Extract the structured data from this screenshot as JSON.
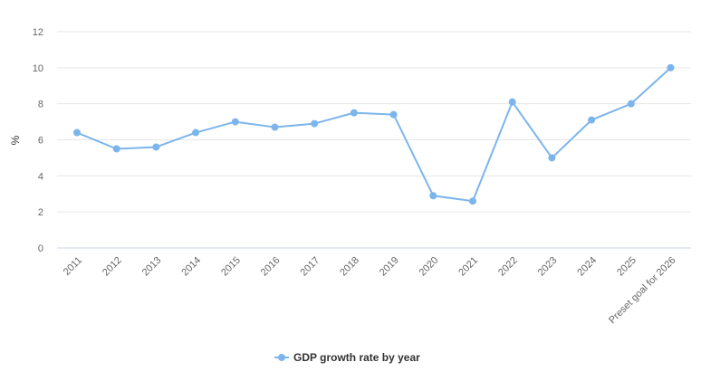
{
  "chart_data": {
    "type": "line",
    "title": "",
    "xlabel": "",
    "ylabel": "%",
    "ylim": [
      0,
      12
    ],
    "yticks": [
      0,
      2,
      4,
      6,
      8,
      10,
      12
    ],
    "grid": true,
    "legend_position": "bottom-center",
    "categories": [
      "2011",
      "2012",
      "2013",
      "2014",
      "2015",
      "2016",
      "2017",
      "2018",
      "2019",
      "2020",
      "2021",
      "2022",
      "2023",
      "2024",
      "2025",
      "Preset goal for 2026"
    ],
    "series": [
      {
        "name": "GDP growth rate by year",
        "color": "#7cb5ec",
        "values": [
          6.4,
          5.5,
          5.6,
          6.4,
          7.0,
          6.7,
          6.9,
          7.5,
          7.4,
          2.9,
          2.6,
          8.1,
          5.0,
          7.1,
          8.0,
          10.0
        ]
      }
    ]
  }
}
